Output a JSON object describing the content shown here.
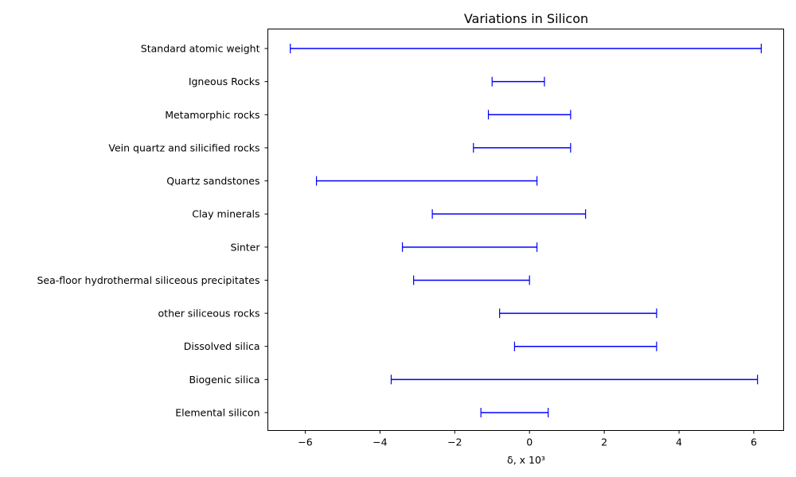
{
  "chart_data": {
    "type": "range",
    "title": "Variations  in Silicon",
    "xlabel": "δ, x 10³",
    "ylabel": "",
    "xlim": [
      -7,
      6.8
    ],
    "xticks": [
      -6,
      -4,
      -2,
      0,
      2,
      4,
      6
    ],
    "xtick_labels": [
      "−6",
      "−4",
      "−2",
      "0",
      "2",
      "4",
      "6"
    ],
    "grid": false,
    "color": "#0000ff",
    "ranges": [
      {
        "category": "Standard atomic weight",
        "min": -6.4,
        "max": 6.2
      },
      {
        "category": "Igneous Rocks",
        "min": -1.0,
        "max": 0.4
      },
      {
        "category": "Metamorphic rocks",
        "min": -1.1,
        "max": 1.1
      },
      {
        "category": "Vein quartz and silicified rocks",
        "min": -1.5,
        "max": 1.1
      },
      {
        "category": "Quartz sandstones",
        "min": -5.7,
        "max": 0.2
      },
      {
        "category": "Clay minerals",
        "min": -2.6,
        "max": 1.5
      },
      {
        "category": "Sinter",
        "min": -3.4,
        "max": 0.2
      },
      {
        "category": "Sea-floor hydrothermal siliceous precipitates",
        "min": -3.1,
        "max": 0.0
      },
      {
        "category": "other siliceous rocks",
        "min": -0.8,
        "max": 3.4
      },
      {
        "category": "Dissolved silica",
        "min": -0.4,
        "max": 3.4
      },
      {
        "category": "Biogenic silica",
        "min": -3.7,
        "max": 6.1
      },
      {
        "category": "Elemental silicon",
        "min": -1.3,
        "max": 0.5
      }
    ]
  }
}
